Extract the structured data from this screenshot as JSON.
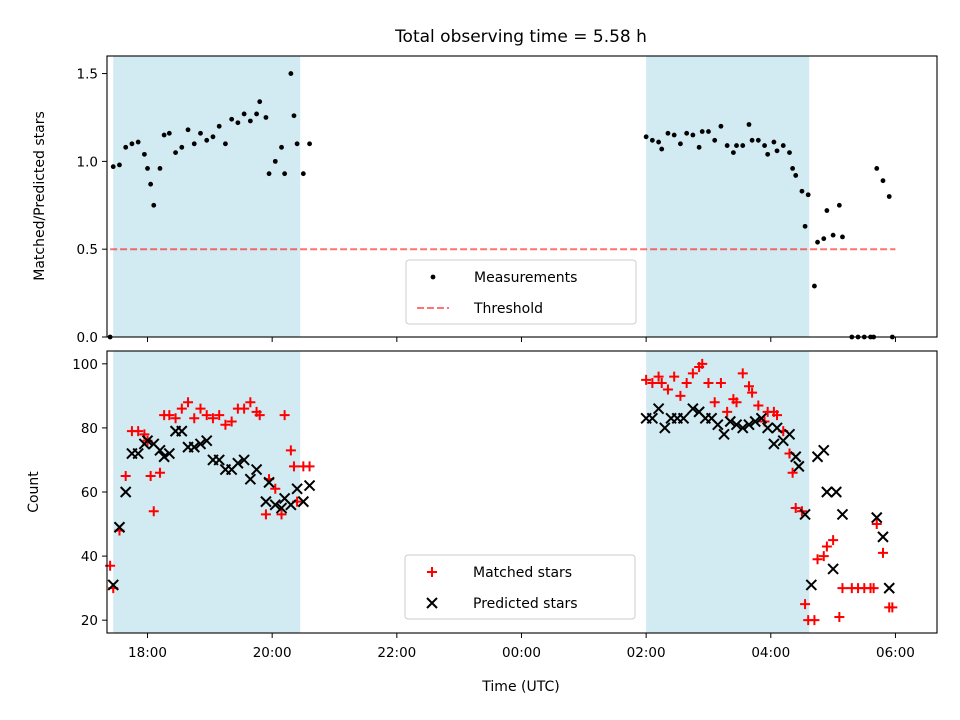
{
  "chart_data": [
    {
      "type": "scatter",
      "title": "Total observing time = 5.58 h",
      "ylabel": "Matched/Predicted stars",
      "xlabel": "",
      "xlim": [
        "17:21",
        "06:40"
      ],
      "ylim": [
        0,
        1.6
      ],
      "yticks": [
        "0.0",
        "0.5",
        "1.0",
        "1.5"
      ],
      "xticks": [
        "18:00",
        "20:00",
        "22:00",
        "00:00",
        "02:00",
        "04:00",
        "06:00"
      ],
      "shaded_intervals": [
        [
          "17:27",
          "20:27"
        ],
        [
          "02:00",
          "04:37"
        ]
      ],
      "shade_color": "#add8e6",
      "legend": {
        "position": "lower center",
        "entries": [
          "Measurements",
          "Threshold"
        ]
      },
      "series": [
        {
          "name": "Measurements",
          "marker": "dot",
          "color": "#000000",
          "points": [
            [
              "17:24",
              0.0
            ],
            [
              "17:27",
              0.97
            ],
            [
              "17:33",
              0.98
            ],
            [
              "17:39",
              1.08
            ],
            [
              "17:45",
              1.1
            ],
            [
              "17:51",
              1.11
            ],
            [
              "17:57",
              1.04
            ],
            [
              "18:00",
              0.96
            ],
            [
              "18:03",
              0.87
            ],
            [
              "18:06",
              0.75
            ],
            [
              "18:12",
              0.96
            ],
            [
              "18:16",
              1.15
            ],
            [
              "18:21",
              1.16
            ],
            [
              "18:27",
              1.05
            ],
            [
              "18:33",
              1.08
            ],
            [
              "18:39",
              1.18
            ],
            [
              "18:45",
              1.1
            ],
            [
              "18:51",
              1.16
            ],
            [
              "18:57",
              1.12
            ],
            [
              "19:03",
              1.14
            ],
            [
              "19:09",
              1.2
            ],
            [
              "19:15",
              1.1
            ],
            [
              "19:21",
              1.24
            ],
            [
              "19:27",
              1.22
            ],
            [
              "19:33",
              1.27
            ],
            [
              "19:39",
              1.23
            ],
            [
              "19:45",
              1.27
            ],
            [
              "19:48",
              1.34
            ],
            [
              "19:54",
              1.25
            ],
            [
              "19:57",
              0.93
            ],
            [
              "20:03",
              1.0
            ],
            [
              "20:09",
              1.08
            ],
            [
              "20:12",
              0.93
            ],
            [
              "20:18",
              1.5
            ],
            [
              "20:21",
              1.26
            ],
            [
              "20:24",
              1.1
            ],
            [
              "20:30",
              0.93
            ],
            [
              "20:36",
              1.1
            ],
            [
              "02:00",
              1.14
            ],
            [
              "02:06",
              1.12
            ],
            [
              "02:12",
              1.11
            ],
            [
              "02:15",
              1.07
            ],
            [
              "02:21",
              1.16
            ],
            [
              "02:27",
              1.15
            ],
            [
              "02:33",
              1.1
            ],
            [
              "02:39",
              1.16
            ],
            [
              "02:45",
              1.15
            ],
            [
              "02:51",
              1.08
            ],
            [
              "02:54",
              1.17
            ],
            [
              "03:00",
              1.17
            ],
            [
              "03:06",
              1.12
            ],
            [
              "03:12",
              1.2
            ],
            [
              "03:18",
              1.09
            ],
            [
              "03:24",
              1.05
            ],
            [
              "03:27",
              1.09
            ],
            [
              "03:33",
              1.09
            ],
            [
              "03:39",
              1.21
            ],
            [
              "03:42",
              1.12
            ],
            [
              "03:48",
              1.12
            ],
            [
              "03:54",
              1.09
            ],
            [
              "03:57",
              1.04
            ],
            [
              "04:03",
              1.11
            ],
            [
              "04:06",
              1.06
            ],
            [
              "04:12",
              1.09
            ],
            [
              "04:18",
              1.05
            ],
            [
              "04:21",
              0.96
            ],
            [
              "04:24",
              0.92
            ],
            [
              "04:30",
              0.83
            ],
            [
              "04:33",
              0.63
            ],
            [
              "04:36",
              0.81
            ],
            [
              "04:42",
              0.29
            ],
            [
              "04:45",
              0.54
            ],
            [
              "04:51",
              0.56
            ],
            [
              "04:54",
              0.72
            ],
            [
              "05:00",
              0.58
            ],
            [
              "05:06",
              0.75
            ],
            [
              "05:09",
              0.57
            ],
            [
              "05:18",
              0.0
            ],
            [
              "05:24",
              0.0
            ],
            [
              "05:30",
              0.0
            ],
            [
              "05:36",
              0.0
            ],
            [
              "05:39",
              0.0
            ],
            [
              "05:42",
              0.96
            ],
            [
              "05:48",
              0.89
            ],
            [
              "05:54",
              0.8
            ],
            [
              "05:57",
              0.0
            ]
          ]
        },
        {
          "name": "Threshold",
          "style": "dashed",
          "color": "#ff0000",
          "points": [
            [
              "17:24",
              0.5
            ],
            [
              "06:00",
              0.5
            ]
          ]
        }
      ]
    },
    {
      "type": "scatter",
      "title": "",
      "ylabel": "Count",
      "xlabel": "Time (UTC)",
      "xlim": [
        "17:21",
        "06:40"
      ],
      "ylim": [
        16,
        104
      ],
      "yticks": [
        "20",
        "40",
        "60",
        "80",
        "100"
      ],
      "xticks": [
        "18:00",
        "20:00",
        "22:00",
        "00:00",
        "02:00",
        "04:00",
        "06:00"
      ],
      "shaded_intervals": [
        [
          "17:27",
          "20:27"
        ],
        [
          "02:00",
          "04:37"
        ]
      ],
      "shade_color": "#add8e6",
      "legend": {
        "position": "lower center",
        "entries": [
          "Matched stars",
          "Predicted stars"
        ]
      },
      "series": [
        {
          "name": "Matched stars",
          "marker": "plus",
          "color": "#ff0000",
          "points": [
            [
              "17:24",
              37
            ],
            [
              "17:27",
              30
            ],
            [
              "17:33",
              48
            ],
            [
              "17:39",
              65
            ],
            [
              "17:45",
              79
            ],
            [
              "17:51",
              79
            ],
            [
              "17:57",
              78
            ],
            [
              "18:00",
              76
            ],
            [
              "18:03",
              65
            ],
            [
              "18:06",
              54
            ],
            [
              "18:12",
              66
            ],
            [
              "18:16",
              84
            ],
            [
              "18:21",
              84
            ],
            [
              "18:27",
              83
            ],
            [
              "18:33",
              86
            ],
            [
              "18:39",
              88
            ],
            [
              "18:45",
              83
            ],
            [
              "18:51",
              86
            ],
            [
              "18:57",
              84
            ],
            [
              "19:03",
              83
            ],
            [
              "19:09",
              84
            ],
            [
              "19:15",
              81
            ],
            [
              "19:21",
              82
            ],
            [
              "19:27",
              86
            ],
            [
              "19:33",
              86
            ],
            [
              "19:39",
              88
            ],
            [
              "19:45",
              85
            ],
            [
              "19:48",
              84
            ],
            [
              "19:54",
              53
            ],
            [
              "19:57",
              64
            ],
            [
              "20:03",
              61
            ],
            [
              "20:09",
              53
            ],
            [
              "20:12",
              84
            ],
            [
              "20:18",
              73
            ],
            [
              "20:21",
              68
            ],
            [
              "20:24",
              57
            ],
            [
              "20:30",
              68
            ],
            [
              "20:36",
              68
            ],
            [
              "02:00",
              95
            ],
            [
              "02:06",
              94
            ],
            [
              "02:12",
              96
            ],
            [
              "02:15",
              94
            ],
            [
              "02:21",
              92
            ],
            [
              "02:27",
              96
            ],
            [
              "02:33",
              90
            ],
            [
              "02:39",
              94
            ],
            [
              "02:45",
              97
            ],
            [
              "02:51",
              99
            ],
            [
              "02:54",
              100
            ],
            [
              "03:00",
              94
            ],
            [
              "03:06",
              88
            ],
            [
              "03:12",
              94
            ],
            [
              "03:18",
              85
            ],
            [
              "03:24",
              89
            ],
            [
              "03:27",
              88
            ],
            [
              "03:33",
              97
            ],
            [
              "03:39",
              93
            ],
            [
              "03:42",
              91
            ],
            [
              "03:48",
              87
            ],
            [
              "03:54",
              82
            ],
            [
              "03:57",
              85
            ],
            [
              "04:03",
              85
            ],
            [
              "04:06",
              84
            ],
            [
              "04:12",
              79
            ],
            [
              "04:18",
              72
            ],
            [
              "04:21",
              66
            ],
            [
              "04:24",
              55
            ],
            [
              "04:30",
              54
            ],
            [
              "04:33",
              25
            ],
            [
              "04:36",
              20
            ],
            [
              "04:42",
              20
            ],
            [
              "04:45",
              39
            ],
            [
              "04:51",
              40
            ],
            [
              "04:54",
              43
            ],
            [
              "05:00",
              45
            ],
            [
              "05:06",
              21
            ],
            [
              "05:09",
              30
            ],
            [
              "05:18",
              30
            ],
            [
              "05:24",
              30
            ],
            [
              "05:30",
              30
            ],
            [
              "05:36",
              30
            ],
            [
              "05:39",
              30
            ],
            [
              "05:42",
              50
            ],
            [
              "05:48",
              41
            ],
            [
              "05:54",
              24
            ],
            [
              "05:57",
              24
            ]
          ]
        },
        {
          "name": "Predicted stars",
          "marker": "cross",
          "color": "#000000",
          "points": [
            [
              "17:27",
              31
            ],
            [
              "17:33",
              49
            ],
            [
              "17:39",
              60
            ],
            [
              "17:45",
              72
            ],
            [
              "17:51",
              72
            ],
            [
              "17:57",
              75
            ],
            [
              "18:00",
              76
            ],
            [
              "18:06",
              75
            ],
            [
              "18:12",
              73
            ],
            [
              "18:16",
              71
            ],
            [
              "18:21",
              72
            ],
            [
              "18:27",
              79
            ],
            [
              "18:33",
              79
            ],
            [
              "18:39",
              74
            ],
            [
              "18:45",
              74
            ],
            [
              "18:51",
              75
            ],
            [
              "18:57",
              76
            ],
            [
              "19:03",
              70
            ],
            [
              "19:09",
              70
            ],
            [
              "19:15",
              67
            ],
            [
              "19:21",
              67
            ],
            [
              "19:27",
              69
            ],
            [
              "19:33",
              70
            ],
            [
              "19:39",
              64
            ],
            [
              "19:45",
              67
            ],
            [
              "19:54",
              57
            ],
            [
              "19:57",
              63
            ],
            [
              "20:03",
              56
            ],
            [
              "20:09",
              55
            ],
            [
              "20:12",
              58
            ],
            [
              "20:18",
              56
            ],
            [
              "20:24",
              61
            ],
            [
              "20:30",
              57
            ],
            [
              "20:36",
              62
            ],
            [
              "02:00",
              83
            ],
            [
              "02:06",
              83
            ],
            [
              "02:12",
              86
            ],
            [
              "02:18",
              80
            ],
            [
              "02:24",
              83
            ],
            [
              "02:30",
              83
            ],
            [
              "02:36",
              83
            ],
            [
              "02:45",
              86
            ],
            [
              "02:51",
              85
            ],
            [
              "02:57",
              83
            ],
            [
              "03:03",
              83
            ],
            [
              "03:09",
              81
            ],
            [
              "03:15",
              78
            ],
            [
              "03:21",
              82
            ],
            [
              "03:27",
              81
            ],
            [
              "03:33",
              80
            ],
            [
              "03:39",
              81
            ],
            [
              "03:45",
              82
            ],
            [
              "03:51",
              83
            ],
            [
              "03:57",
              80
            ],
            [
              "04:03",
              75
            ],
            [
              "04:06",
              80
            ],
            [
              "04:12",
              76
            ],
            [
              "04:18",
              78
            ],
            [
              "04:24",
              71
            ],
            [
              "04:27",
              68
            ],
            [
              "04:33",
              53
            ],
            [
              "04:39",
              31
            ],
            [
              "04:45",
              71
            ],
            [
              "04:51",
              73
            ],
            [
              "04:54",
              60
            ],
            [
              "05:00",
              36
            ],
            [
              "05:03",
              60
            ],
            [
              "05:09",
              53
            ],
            [
              "05:42",
              52
            ],
            [
              "05:48",
              46
            ],
            [
              "05:54",
              30
            ]
          ]
        }
      ]
    }
  ]
}
